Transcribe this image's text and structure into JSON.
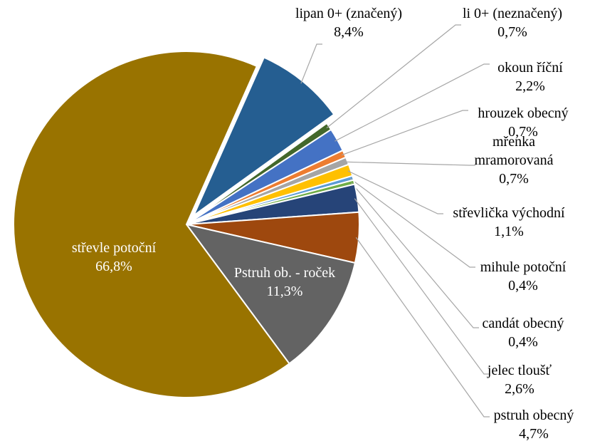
{
  "chart_data": {
    "type": "pie",
    "categories": [
      "lipan 0+ (značený)",
      "li 0+ (neznačený)",
      "okoun říční",
      "hrouzek obecný",
      "mřenka mramorovaná",
      "střevlička východní",
      "mihule potoční",
      "candát obecný",
      "jelec tloušť",
      "pstruh obecný",
      "Pstruh ob. - roček",
      "střevle potoční"
    ],
    "values": [
      8.4,
      0.7,
      2.2,
      0.7,
      0.7,
      1.1,
      0.4,
      0.4,
      2.6,
      4.7,
      11.3,
      66.8
    ],
    "value_labels": [
      "8,4%",
      "0,7%",
      "2,2%",
      "0,7%",
      "0,7%",
      "1,1%",
      "0,4%",
      "0,4%",
      "2,6%",
      "4,7%",
      "11,3%",
      "66,8%"
    ],
    "colors": [
      "#255e91",
      "#43682b",
      "#4472c4",
      "#ed7d31",
      "#a5a5a5",
      "#ffc000",
      "#5b9bd5",
      "#70ad47",
      "#264478",
      "#9e480e",
      "#636363",
      "#997300"
    ],
    "exploded": [
      0
    ]
  }
}
